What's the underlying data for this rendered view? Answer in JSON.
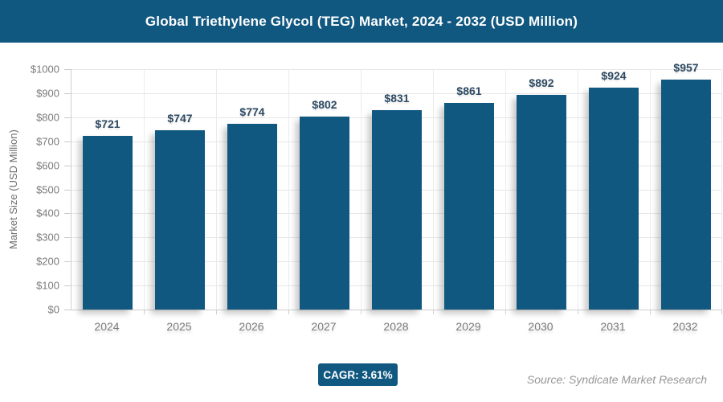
{
  "header": {
    "title": "Global Triethylene Glycol (TEG) Market, 2024 - 2032 (USD Million)"
  },
  "chart_data": {
    "type": "bar",
    "title": "Global Triethylene Glycol (TEG) Market, 2024 - 2032 (USD Million)",
    "categories": [
      "2024",
      "2025",
      "2026",
      "2027",
      "2028",
      "2029",
      "2030",
      "2031",
      "2032"
    ],
    "values": [
      721,
      747,
      774,
      802,
      831,
      861,
      892,
      924,
      957
    ],
    "data_labels": [
      "$721",
      "$747",
      "$774",
      "$802",
      "$831",
      "$861",
      "$892",
      "$924",
      "$957"
    ],
    "xlabel": "",
    "ylabel": "Market Size (USD Million)",
    "ylim": [
      0,
      1000
    ],
    "ytick_step": 100,
    "ytick_labels": [
      "$0",
      "$100",
      "$200",
      "$300",
      "$400",
      "$500",
      "$600",
      "$700",
      "$800",
      "$900",
      "$1000"
    ],
    "grid": true,
    "legend": "none",
    "bar_color": "#115881",
    "data_label_color": "#2e4a63"
  },
  "footer": {
    "cagr_label": "CAGR: 3.61%",
    "source": "Source: Syndicate Market Research"
  },
  "colors": {
    "accent_blue": "#115881",
    "axis_text": "#7b7b7b",
    "gridline": "#e7e7e7",
    "title_text": "#ffffff"
  }
}
